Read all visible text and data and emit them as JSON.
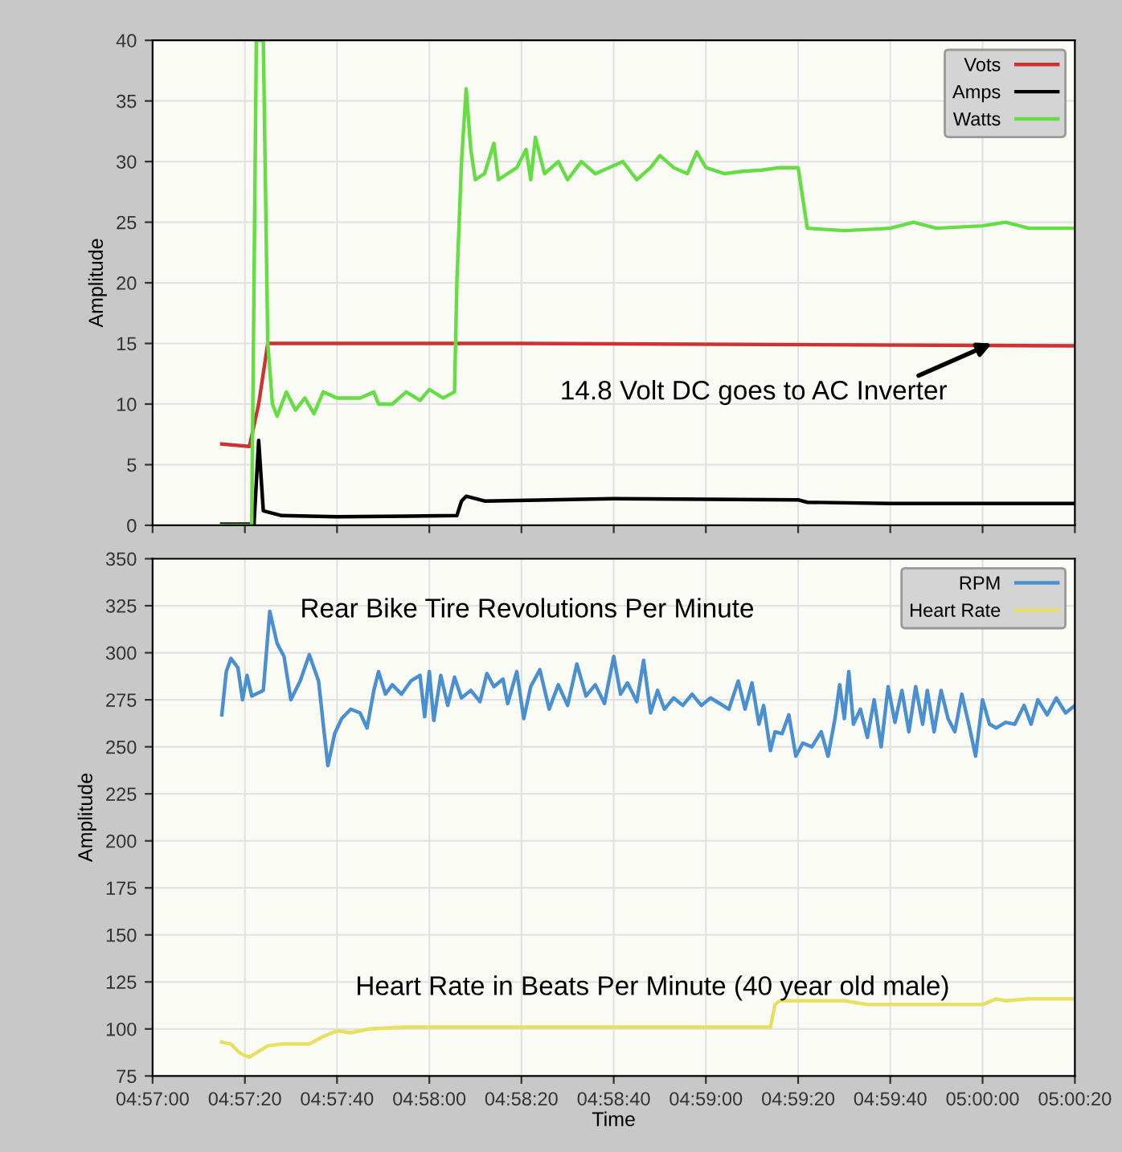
{
  "chart_data": [
    {
      "type": "line",
      "ylabel": "Amplitude",
      "xlim": [
        4.95,
        5.00556
      ],
      "ylim": [
        0,
        40
      ],
      "xticks": [
        {
          "value": 4.95,
          "label": null
        },
        {
          "value": 4.95556,
          "label": null
        },
        {
          "value": 4.96111,
          "label": null
        },
        {
          "value": 4.96667,
          "label": null
        },
        {
          "value": 4.97222,
          "label": null
        },
        {
          "value": 4.97778,
          "label": null
        },
        {
          "value": 4.98333,
          "label": null
        },
        {
          "value": 4.98889,
          "label": null
        },
        {
          "value": 4.99444,
          "label": null
        },
        {
          "value": 5.0,
          "label": null
        },
        {
          "value": 5.00556,
          "label": null
        }
      ],
      "yticks": [
        0,
        5,
        10,
        15,
        20,
        25,
        30,
        35,
        40
      ],
      "tick_labels": "y",
      "grid": true,
      "legend": "top right",
      "marker": "none",
      "line_style": "solid",
      "annotations": [
        {
          "text": "14.8 Volt DC goes to AC Inverter",
          "x": 5.00056,
          "y": 15
        }
      ],
      "series": [
        {
          "name": "Vots",
          "color": "#cc3333",
          "x": [
            4.95417,
            4.95583,
            4.95639,
            4.95694,
            4.97222,
            5.00556
          ],
          "values": [
            6.7,
            6.5,
            10,
            15,
            15,
            14.8
          ]
        },
        {
          "name": "Amps",
          "color": "#000000",
          "x": [
            4.95417,
            4.95611,
            4.95639,
            4.95667,
            4.95778,
            4.96111,
            4.96833,
            4.96861,
            4.96889,
            4.97,
            4.97778,
            4.98889,
            4.98944,
            4.99444,
            5.00556
          ],
          "values": [
            0.1,
            0.1,
            7,
            1.2,
            0.8,
            0.7,
            0.8,
            2.0,
            2.4,
            2.0,
            2.2,
            2.1,
            1.9,
            1.8,
            1.8
          ]
        },
        {
          "name": "Watts",
          "color": "#66dd44",
          "x": [
            4.95417,
            4.95597,
            4.95625,
            4.95667,
            4.95694,
            4.95722,
            4.9575,
            4.95806,
            4.95861,
            4.95917,
            4.95972,
            4.96028,
            4.96111,
            4.9625,
            4.96333,
            4.96361,
            4.96444,
            4.96528,
            4.96611,
            4.96667,
            4.9675,
            4.96819,
            4.96833,
            4.96861,
            4.96889,
            4.96917,
            4.96944,
            4.97,
            4.97056,
            4.97083,
            4.97139,
            4.97194,
            4.9725,
            4.97278,
            4.97306,
            4.97361,
            4.97444,
            4.975,
            4.97583,
            4.97667,
            4.9775,
            4.97833,
            4.97917,
            4.98,
            4.98056,
            4.98139,
            4.98222,
            4.98278,
            4.98333,
            4.98444,
            4.98556,
            4.98667,
            4.98778,
            4.98889,
            4.98944,
            4.99167,
            4.99444,
            4.99583,
            4.99722,
            5.0,
            5.00139,
            5.00278,
            5.00556
          ],
          "values": [
            0,
            0,
            40,
            40,
            15,
            10,
            9,
            11,
            9.5,
            10.5,
            9.2,
            11,
            10.5,
            10.5,
            11,
            10,
            10,
            11,
            10.3,
            11.2,
            10.5,
            11,
            20,
            30,
            36,
            31,
            28.5,
            29,
            31.5,
            28.5,
            29,
            29.5,
            31,
            28.5,
            32,
            29,
            30,
            28.5,
            30,
            29,
            29.5,
            30,
            28.5,
            29.5,
            30.5,
            29.5,
            29,
            30.8,
            29.5,
            29,
            29.2,
            29.3,
            29.5,
            29.5,
            24.5,
            24.3,
            24.5,
            25,
            24.5,
            24.7,
            25,
            24.5,
            24.5
          ]
        }
      ]
    },
    {
      "type": "line",
      "xlabel": "Time",
      "ylabel": "Amplitude",
      "xlim": [
        4.95,
        5.00556
      ],
      "ylim": [
        75,
        350
      ],
      "xticks": [
        {
          "value": 4.95,
          "label": "04:57:00"
        },
        {
          "value": 4.95556,
          "label": "04:57:20"
        },
        {
          "value": 4.96111,
          "label": "04:57:40"
        },
        {
          "value": 4.96667,
          "label": "04:58:00"
        },
        {
          "value": 4.97222,
          "label": "04:58:20"
        },
        {
          "value": 4.97778,
          "label": "04:58:40"
        },
        {
          "value": 4.98333,
          "label": "04:59:00"
        },
        {
          "value": 4.98889,
          "label": "04:59:20"
        },
        {
          "value": 4.99444,
          "label": "04:59:40"
        },
        {
          "value": 5.0,
          "label": "05:00:00"
        },
        {
          "value": 5.00556,
          "label": "05:00:20"
        }
      ],
      "yticks": [
        75,
        100,
        125,
        150,
        175,
        200,
        225,
        250,
        275,
        300,
        325,
        350
      ],
      "grid": true,
      "legend": "top right",
      "marker": "none",
      "line_style": "solid",
      "annotations": [
        "Rear Bike Tire Revolutions Per Minute",
        "Heart Rate in Beats Per Minute (40 year old male)"
      ],
      "series": [
        {
          "name": "RPM",
          "color": "#4a90d0",
          "x": [
            4.95417,
            4.95444,
            4.95472,
            4.95514,
            4.95542,
            4.95569,
            4.95597,
            4.95667,
            4.95706,
            4.9575,
            4.95792,
            4.95833,
            4.95889,
            4.95944,
            4.96,
            4.96028,
            4.96056,
            4.96097,
            4.96139,
            4.96194,
            4.9625,
            4.96292,
            4.96333,
            4.96361,
            4.96403,
            4.96444,
            4.965,
            4.96556,
            4.96611,
            4.96639,
            4.96667,
            4.96694,
            4.96736,
            4.96778,
            4.96819,
            4.96861,
            4.96917,
            4.96972,
            4.97014,
            4.97056,
            4.97111,
            4.97139,
            4.97194,
            4.97236,
            4.97278,
            4.97333,
            4.97389,
            4.97444,
            4.975,
            4.97556,
            4.97611,
            4.97667,
            4.97722,
            4.97778,
            4.97819,
            4.97861,
            4.97917,
            4.97958,
            4.98,
            4.98042,
            4.98083,
            4.98139,
            4.98194,
            4.9825,
            4.98306,
            4.98361,
            4.98417,
            4.98472,
            4.98528,
            4.98569,
            4.98611,
            4.98653,
            4.98681,
            4.98722,
            4.9875,
            4.98792,
            4.98833,
            4.98875,
            4.98917,
            4.98972,
            4.99028,
            4.99069,
            4.99111,
            4.99139,
            4.99167,
            4.99194,
            4.99222,
            4.99264,
            4.99306,
            4.99347,
            4.99389,
            4.99431,
            4.99472,
            4.99514,
            4.99556,
            4.99597,
            4.99639,
            4.99667,
            4.99708,
            4.9975,
            4.99792,
            4.99833,
            4.99875,
            4.99917,
            4.99958,
            5.0,
            5.00042,
            5.00083,
            5.00139,
            5.00194,
            5.0025,
            5.00292,
            5.00333,
            5.00389,
            5.00444,
            5.005,
            5.00556
          ],
          "values": [
            267,
            290,
            297,
            292,
            275,
            288,
            277,
            280,
            322,
            305,
            298,
            275,
            285,
            299,
            285,
            262,
            240,
            257,
            265,
            270,
            268,
            260,
            280,
            290,
            278,
            283,
            278,
            285,
            288,
            266,
            290,
            264,
            288,
            272,
            287,
            276,
            280,
            274,
            289,
            282,
            286,
            273,
            290,
            265,
            282,
            291,
            270,
            283,
            272,
            294,
            277,
            283,
            273,
            298,
            278,
            284,
            274,
            296,
            268,
            280,
            270,
            276,
            272,
            278,
            272,
            276,
            273,
            270,
            285,
            270,
            284,
            262,
            272,
            248,
            258,
            257,
            267,
            245,
            252,
            250,
            258,
            245,
            265,
            283,
            265,
            290,
            262,
            270,
            255,
            275,
            250,
            282,
            263,
            280,
            258,
            282,
            262,
            280,
            258,
            280,
            265,
            258,
            278,
            262,
            245,
            275,
            262,
            260,
            263,
            262,
            272,
            262,
            275,
            267,
            276,
            268,
            272
          ]
        },
        {
          "name": "Heart Rate",
          "color": "#e8e060",
          "x": [
            4.95417,
            4.95472,
            4.95528,
            4.95583,
            4.95639,
            4.95694,
            4.95778,
            4.95944,
            4.96028,
            4.96111,
            4.96194,
            4.96306,
            4.96528,
            4.97222,
            4.97778,
            4.98722,
            4.9875,
            4.98778,
            4.99167,
            4.99306,
            5.0,
            5.00083,
            5.00139,
            5.00278,
            5.00556
          ],
          "values": [
            93,
            92,
            87,
            85,
            88,
            91,
            92,
            92,
            96,
            99,
            98,
            100,
            101,
            101,
            101,
            101,
            113,
            115,
            115,
            113,
            113,
            116,
            115,
            116,
            116
          ]
        }
      ]
    }
  ]
}
